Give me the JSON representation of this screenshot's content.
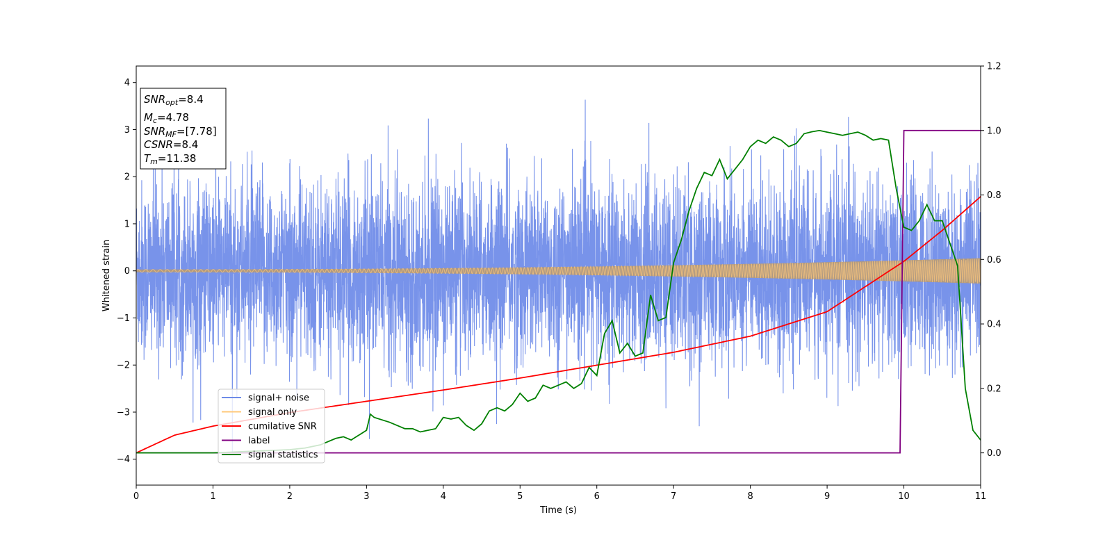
{
  "chart_data": {
    "type": "line",
    "xlabel": "Time (s)",
    "ylabel": "Whitened strain",
    "xlim": [
      0,
      11
    ],
    "ylim_left": [
      -4.55,
      4.35
    ],
    "ylim_right": [
      -0.1,
      1.2
    ],
    "x_ticks": [
      0,
      1,
      2,
      3,
      4,
      5,
      6,
      7,
      8,
      9,
      10,
      11
    ],
    "y_ticks_left": [
      -4,
      -3,
      -2,
      -1,
      0,
      1,
      2,
      3,
      4
    ],
    "y_ticks_right": [
      0.0,
      0.2,
      0.4,
      0.6,
      0.8,
      1.0,
      1.2
    ],
    "grid": false,
    "legend_position": "lower-left",
    "annotation": {
      "snr_opt": {
        "sym": "SNR",
        "sub": "opt",
        "val": "=8.4"
      },
      "mc": {
        "sym": "M",
        "sub": "c",
        "val": "=4.78"
      },
      "snr_mf": {
        "sym": "SNR",
        "sub": "MF",
        "val": "=[7.78]"
      },
      "csnr": {
        "sym": "CSNR",
        "sub": "",
        "val": "=8.4"
      },
      "tm": {
        "sym": "T",
        "sub": "m",
        "val": "=11.38"
      }
    },
    "series": [
      {
        "name": "signal+ noise",
        "color": "#6d8ae8",
        "axis": "left",
        "kind": "noise",
        "approx_std": 0.95,
        "approx_range": [
          -4.15,
          3.95
        ]
      },
      {
        "name": "signal only",
        "color": "#ffc87a",
        "axis": "left",
        "kind": "chirp",
        "approx_amplitude_start": 0.03,
        "approx_amplitude_end": 0.27
      },
      {
        "name": "cumilative SNR",
        "color": "#ff0000",
        "axis": "right",
        "x": [
          0,
          0.5,
          1,
          2,
          3,
          4,
          5,
          6,
          7,
          8,
          9,
          10,
          10.5,
          11
        ],
        "y": [
          0.0,
          0.055,
          0.083,
          0.125,
          0.16,
          0.195,
          0.232,
          0.272,
          0.312,
          0.362,
          0.438,
          0.594,
          0.69,
          0.795
        ]
      },
      {
        "name": "label",
        "color": "#800080",
        "axis": "right",
        "x": [
          0,
          9.95,
          10.0,
          11
        ],
        "y": [
          0,
          0,
          1,
          1
        ]
      },
      {
        "name": "signal statistics",
        "color": "#008000",
        "axis": "right",
        "x": [
          0,
          1,
          2,
          2.2,
          2.4,
          2.6,
          2.7,
          2.8,
          2.9,
          3.0,
          3.05,
          3.1,
          3.3,
          3.5,
          3.6,
          3.7,
          3.8,
          3.9,
          4.0,
          4.1,
          4.2,
          4.3,
          4.4,
          4.5,
          4.6,
          4.7,
          4.8,
          4.9,
          5.0,
          5.1,
          5.2,
          5.3,
          5.4,
          5.5,
          5.6,
          5.7,
          5.8,
          5.9,
          6.0,
          6.1,
          6.2,
          6.3,
          6.4,
          6.5,
          6.6,
          6.7,
          6.8,
          6.9,
          7.0,
          7.1,
          7.2,
          7.3,
          7.4,
          7.5,
          7.6,
          7.7,
          7.8,
          7.9,
          8.0,
          8.1,
          8.2,
          8.3,
          8.4,
          8.5,
          8.6,
          8.7,
          8.8,
          8.9,
          9.0,
          9.1,
          9.2,
          9.3,
          9.4,
          9.5,
          9.6,
          9.7,
          9.8,
          9.9,
          10.0,
          10.1,
          10.2,
          10.3,
          10.4,
          10.5,
          10.6,
          10.7,
          10.8,
          10.9,
          11.0
        ],
        "y": [
          0.0,
          0.0,
          0.01,
          0.015,
          0.025,
          0.045,
          0.05,
          0.04,
          0.055,
          0.07,
          0.12,
          0.11,
          0.095,
          0.075,
          0.075,
          0.065,
          0.07,
          0.075,
          0.11,
          0.105,
          0.11,
          0.085,
          0.07,
          0.09,
          0.13,
          0.14,
          0.13,
          0.15,
          0.185,
          0.16,
          0.17,
          0.21,
          0.2,
          0.21,
          0.22,
          0.2,
          0.215,
          0.265,
          0.24,
          0.37,
          0.41,
          0.31,
          0.34,
          0.3,
          0.31,
          0.49,
          0.41,
          0.42,
          0.59,
          0.66,
          0.75,
          0.82,
          0.87,
          0.86,
          0.91,
          0.85,
          0.88,
          0.91,
          0.95,
          0.97,
          0.96,
          0.98,
          0.97,
          0.95,
          0.96,
          0.99,
          0.996,
          1.0,
          0.995,
          0.99,
          0.985,
          0.99,
          0.995,
          0.985,
          0.97,
          0.975,
          0.97,
          0.82,
          0.7,
          0.69,
          0.72,
          0.77,
          0.72,
          0.72,
          0.65,
          0.58,
          0.2,
          0.07,
          0.04
        ]
      }
    ]
  }
}
